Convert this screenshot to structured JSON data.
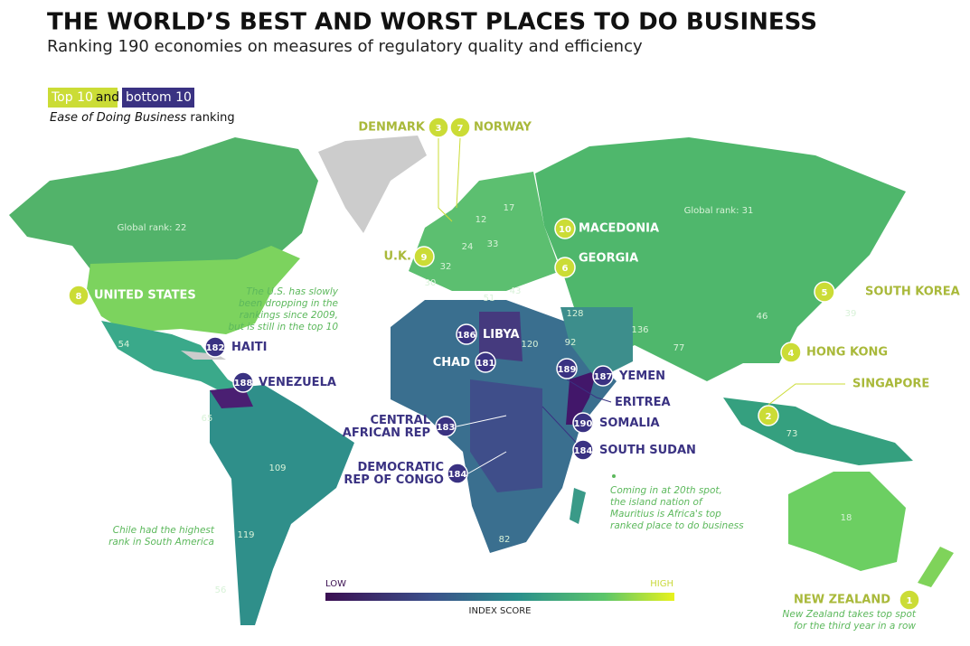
{
  "header": {
    "title": "THE WORLD’S BEST AND WORST PLACES TO DO BUSINESS",
    "subtitle": "Ranking 190 economies on measures of regulatory quality and efficiency"
  },
  "legend": {
    "top": "Top 10",
    "and": "and",
    "bottom": "bottom 10",
    "measure": "Ease of Doing Business",
    "measure_suffix": "ranking"
  },
  "top10": [
    {
      "name": "DENMARK",
      "rank": 3
    },
    {
      "name": "NORWAY",
      "rank": 7
    },
    {
      "name": "MACEDONIA",
      "rank": 10
    },
    {
      "name": "U.K.",
      "rank": 9
    },
    {
      "name": "GEORGIA",
      "rank": 6
    },
    {
      "name": "UNITED STATES",
      "rank": 8
    },
    {
      "name": "SOUTH KOREA",
      "rank": 5
    },
    {
      "name": "HONG KONG",
      "rank": 4
    },
    {
      "name": "SINGAPORE",
      "rank": 2
    },
    {
      "name": "NEW ZEALAND",
      "rank": 1
    }
  ],
  "bottom10": [
    {
      "name": [
        "HAITI"
      ],
      "rank": 182
    },
    {
      "name": [
        "VENEZUELA"
      ],
      "rank": 188
    },
    {
      "name": [
        "LIBYA"
      ],
      "rank": 186
    },
    {
      "name": [
        "CHAD"
      ],
      "rank": 181
    },
    {
      "name": [
        "YEMEN"
      ],
      "rank": 187
    },
    {
      "name": [
        "ERITREA"
      ],
      "rank": 189
    },
    {
      "name": [
        "SOMALIA"
      ],
      "rank": 190
    },
    {
      "name": [
        "SOUTH SUDAN"
      ],
      "rank": 184
    },
    {
      "name": [
        "CENTRAL",
        "AFRICAN REP"
      ],
      "rank": 183
    },
    {
      "name": [
        "DEMOCRATIC",
        "REP OF CONGO"
      ],
      "rank": 184
    }
  ],
  "map_labels": [
    "Global rank: 22",
    "Global rank: 31",
    12,
    17,
    24,
    33,
    32,
    30,
    51,
    43,
    128,
    120,
    92,
    136,
    46,
    39,
    77,
    54,
    65,
    109,
    119,
    56,
    82,
    73,
    18
  ],
  "annotations": [
    [
      "The U.S. has slowly",
      "been dropping in the",
      "rankings since 2009,",
      "but is still in the top 10"
    ],
    [
      "Chile had the highest",
      "rank in South America"
    ],
    [
      "Coming in at 20th spot,",
      "the island nation of",
      "Mauritius is Africa's top",
      "ranked place to do business"
    ],
    [
      "New Zealand takes top spot",
      "for the third year in a row"
    ]
  ],
  "scale": {
    "low": "LOW",
    "high": "HIGH",
    "title": "INDEX SCORE"
  }
}
